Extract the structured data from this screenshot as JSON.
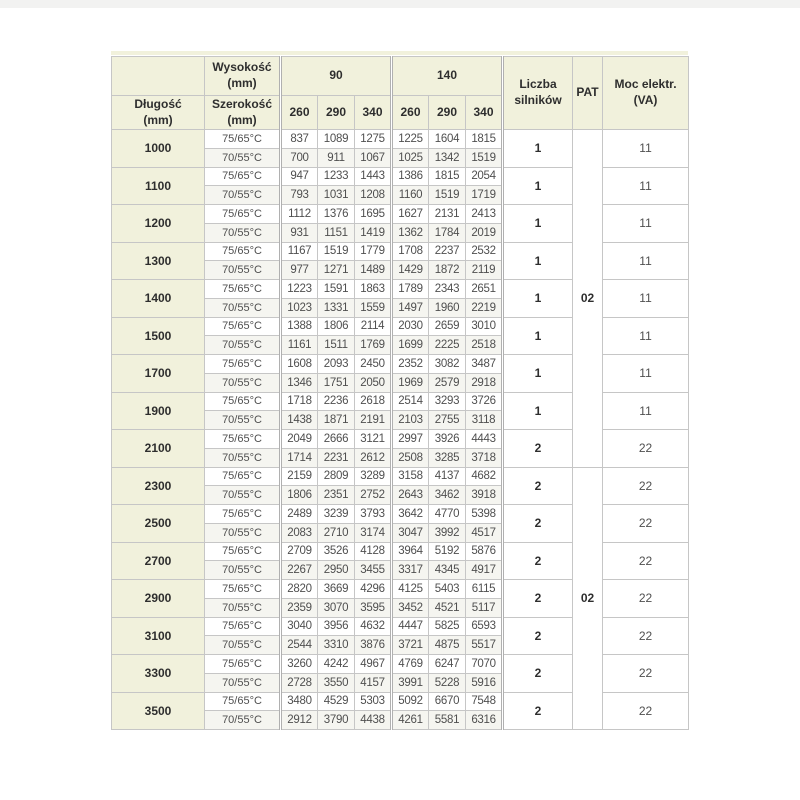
{
  "table": {
    "headers": {
      "dlugosc": "Długość\n(mm)",
      "wysokosc": "Wysokość\n(mm)",
      "szerokosc": "Szerokość\n(mm)",
      "height_90": "90",
      "height_140": "140",
      "width_cols": [
        "260",
        "290",
        "340",
        "260",
        "290",
        "340"
      ],
      "liczba_silnikow": "Liczba\nsilników",
      "pat": "PAT",
      "moc_elektr": "Moc elektr.\n(VA)"
    },
    "temp_labels": [
      "75/65°C",
      "70/55°C"
    ],
    "pat_groups": [
      {
        "value": "02",
        "row_start": 0,
        "row_count": 9
      },
      {
        "value": "02",
        "row_start": 9,
        "row_count": 7
      }
    ],
    "rows": [
      {
        "length": "1000",
        "temp_75_65": [
          837,
          1089,
          1275,
          1225,
          1604,
          1815
        ],
        "temp_70_55": [
          700,
          911,
          1067,
          1025,
          1342,
          1519
        ],
        "liczba_silnikow": "1",
        "moc_va": "11"
      },
      {
        "length": "1100",
        "temp_75_65": [
          947,
          1233,
          1443,
          1386,
          1815,
          2054
        ],
        "temp_70_55": [
          793,
          1031,
          1208,
          1160,
          1519,
          1719
        ],
        "liczba_silnikow": "1",
        "moc_va": "11"
      },
      {
        "length": "1200",
        "temp_75_65": [
          1112,
          1376,
          1695,
          1627,
          2131,
          2413
        ],
        "temp_70_55": [
          931,
          1151,
          1419,
          1362,
          1784,
          2019
        ],
        "liczba_silnikow": "1",
        "moc_va": "11"
      },
      {
        "length": "1300",
        "temp_75_65": [
          1167,
          1519,
          1779,
          1708,
          2237,
          2532
        ],
        "temp_70_55": [
          977,
          1271,
          1489,
          1429,
          1872,
          2119
        ],
        "liczba_silnikow": "1",
        "moc_va": "11"
      },
      {
        "length": "1400",
        "temp_75_65": [
          1223,
          1591,
          1863,
          1789,
          2343,
          2651
        ],
        "temp_70_55": [
          1023,
          1331,
          1559,
          1497,
          1960,
          2219
        ],
        "liczba_silnikow": "1",
        "moc_va": "11"
      },
      {
        "length": "1500",
        "temp_75_65": [
          1388,
          1806,
          2114,
          2030,
          2659,
          3010
        ],
        "temp_70_55": [
          1161,
          1511,
          1769,
          1699,
          2225,
          2518
        ],
        "liczba_silnikow": "1",
        "moc_va": "11"
      },
      {
        "length": "1700",
        "temp_75_65": [
          1608,
          2093,
          2450,
          2352,
          3082,
          3487
        ],
        "temp_70_55": [
          1346,
          1751,
          2050,
          1969,
          2579,
          2918
        ],
        "liczba_silnikow": "1",
        "moc_va": "11"
      },
      {
        "length": "1900",
        "temp_75_65": [
          1718,
          2236,
          2618,
          2514,
          3293,
          3726
        ],
        "temp_70_55": [
          1438,
          1871,
          2191,
          2103,
          2755,
          3118
        ],
        "liczba_silnikow": "1",
        "moc_va": "11"
      },
      {
        "length": "2100",
        "temp_75_65": [
          2049,
          2666,
          3121,
          2997,
          3926,
          4443
        ],
        "temp_70_55": [
          1714,
          2231,
          2612,
          2508,
          3285,
          3718
        ],
        "liczba_silnikow": "2",
        "moc_va": "22"
      },
      {
        "length": "2300",
        "temp_75_65": [
          2159,
          2809,
          3289,
          3158,
          4137,
          4682
        ],
        "temp_70_55": [
          1806,
          2351,
          2752,
          2643,
          3462,
          3918
        ],
        "liczba_silnikow": "2",
        "moc_va": "22"
      },
      {
        "length": "2500",
        "temp_75_65": [
          2489,
          3239,
          3793,
          3642,
          4770,
          5398
        ],
        "temp_70_55": [
          2083,
          2710,
          3174,
          3047,
          3992,
          4517
        ],
        "liczba_silnikow": "2",
        "moc_va": "22"
      },
      {
        "length": "2700",
        "temp_75_65": [
          2709,
          3526,
          4128,
          3964,
          5192,
          5876
        ],
        "temp_70_55": [
          2267,
          2950,
          3455,
          3317,
          4345,
          4917
        ],
        "liczba_silnikow": "2",
        "moc_va": "22"
      },
      {
        "length": "2900",
        "temp_75_65": [
          2820,
          3669,
          4296,
          4125,
          5403,
          6115
        ],
        "temp_70_55": [
          2359,
          3070,
          3595,
          3452,
          4521,
          5117
        ],
        "liczba_silnikow": "2",
        "moc_va": "22"
      },
      {
        "length": "3100",
        "temp_75_65": [
          3040,
          3956,
          4632,
          4447,
          5825,
          6593
        ],
        "temp_70_55": [
          2544,
          3310,
          3876,
          3721,
          4875,
          5517
        ],
        "liczba_silnikow": "2",
        "moc_va": "22"
      },
      {
        "length": "3300",
        "temp_75_65": [
          3260,
          4242,
          4967,
          4769,
          6247,
          7070
        ],
        "temp_70_55": [
          2728,
          3550,
          4157,
          3991,
          5228,
          5916
        ],
        "liczba_silnikow": "2",
        "moc_va": "22"
      },
      {
        "length": "3500",
        "temp_75_65": [
          3480,
          4529,
          5303,
          5092,
          6670,
          7548
        ],
        "temp_70_55": [
          2912,
          3790,
          4438,
          4261,
          5581,
          6316
        ],
        "liczba_silnikow": "2",
        "moc_va": "22"
      }
    ],
    "colors": {
      "header_bg": "#f1f1dc",
      "row_alt_bg": "#f5f5f0",
      "border": "#c6c6c6",
      "border_strong": "#9b9b9b",
      "text": "#4f4f4f",
      "text_bold": "#2e2e2e"
    }
  }
}
